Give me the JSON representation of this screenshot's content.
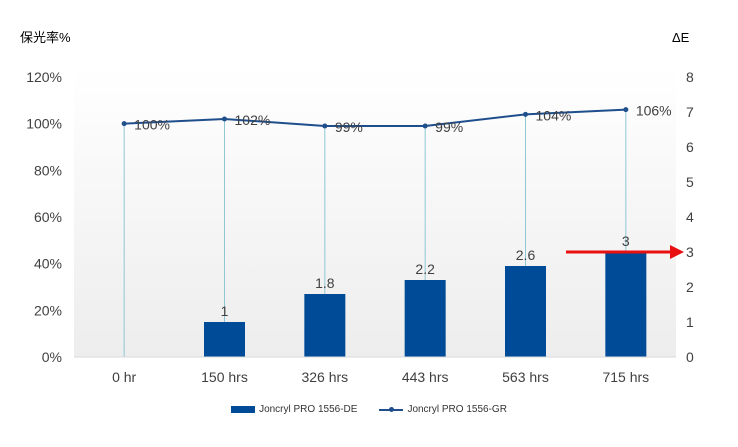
{
  "colors": {
    "bar": "#004B97",
    "line": "#1F4E8C",
    "drop": "#8EC8D6",
    "arrow": "#E81010",
    "axis": "#D9D9D9",
    "bg_top": "#FFFFFF",
    "bg_bottom": "#EDEDED"
  },
  "chart_data": {
    "type": "bar",
    "categories": [
      "0 hr",
      "150 hrs",
      "326 hrs",
      "443 hrs",
      "563 hrs",
      "715 hrs"
    ],
    "series": [
      {
        "name": "Joncryl PRO 1556-DE",
        "type": "bar",
        "axis": "right",
        "values": [
          0,
          1,
          1.8,
          2.2,
          2.6,
          3
        ],
        "labels": [
          "",
          "1",
          "1.8",
          "2.2",
          "2.6",
          "3"
        ]
      },
      {
        "name": "Joncryl PRO 1556-GR",
        "type": "line",
        "axis": "left",
        "values": [
          100,
          102,
          99,
          99,
          104,
          106
        ],
        "labels": [
          "100%",
          "102%",
          "99%",
          "99%",
          "104%",
          "106%"
        ]
      }
    ],
    "y_left": {
      "label": "保光率%",
      "range": [
        0,
        120
      ],
      "ticks": [
        "0%",
        "20%",
        "40%",
        "60%",
        "80%",
        "100%",
        "120%"
      ]
    },
    "y_right": {
      "label": "ΔE",
      "range": [
        0,
        8
      ],
      "ticks": [
        "0",
        "1",
        "2",
        "3",
        "4",
        "5",
        "6",
        "7",
        "8"
      ]
    },
    "annotation": {
      "type": "arrow",
      "value": 3,
      "axis": "right"
    },
    "legend": "bottom",
    "grid": false
  }
}
